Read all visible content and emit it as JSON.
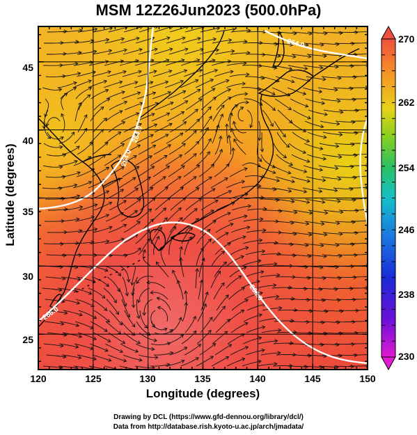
{
  "title": "MSM 12Z26Jun2023 (500.0hPa)",
  "axes": {
    "xlabel": "Longitude (degrees)",
    "ylabel": "Latitude  (degrees)",
    "xticks": [
      "120",
      "125",
      "130",
      "135",
      "140",
      "145",
      "150"
    ],
    "yticks": [
      "25",
      "30",
      "35",
      "40",
      "45"
    ],
    "xrange": [
      120,
      150
    ],
    "yrange": [
      22.4,
      47.6
    ]
  },
  "colorbar": {
    "ticks": [
      "270",
      "262",
      "254",
      "246",
      "238",
      "230"
    ],
    "range": [
      230,
      270
    ]
  },
  "contours": [
    {
      "label": "264.0",
      "color": "#ffffff"
    },
    {
      "label": "264.0",
      "color": "#ffffff"
    },
    {
      "label": "266.0",
      "color": "#ffffff"
    },
    {
      "label": "266.0",
      "color": "#ffffff"
    },
    {
      "label": "264.0",
      "color": "#ffffff"
    }
  ],
  "credits": {
    "line1": "Drawing by DCL (https://www.gfd-dennou.org/library/dcl/)",
    "line2": "Data from http://database.rish.kyoto-u.ac.jp/arch/jmadata/"
  }
}
